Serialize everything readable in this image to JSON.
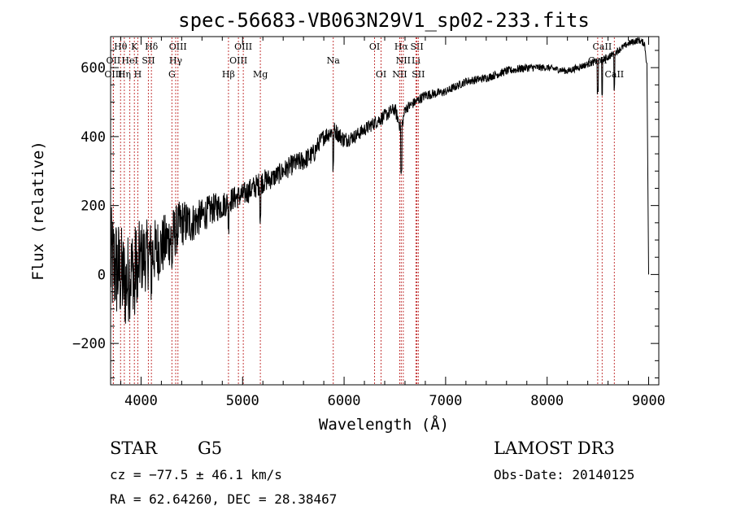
{
  "chart_data": {
    "type": "line",
    "title": "spec-56683-VB063N29V1_sp02-233.fits",
    "xlabel": "Wavelength (Å)",
    "ylabel": "Flux (relative)",
    "xlim": [
      3700,
      9100
    ],
    "ylim": [
      -320,
      690
    ],
    "x_ticks": [
      4000,
      5000,
      6000,
      7000,
      8000,
      9000
    ],
    "y_ticks": [
      -200,
      0,
      200,
      400,
      600
    ],
    "series": [
      {
        "name": "flux",
        "x": [
          3700,
          3750,
          3800,
          3850,
          3900,
          3950,
          4000,
          4100,
          4200,
          4300,
          4400,
          4500,
          4600,
          4700,
          4800,
          4900,
          5000,
          5100,
          5200,
          5300,
          5400,
          5500,
          5600,
          5700,
          5750,
          5800,
          5900,
          6000,
          6100,
          6200,
          6300,
          6400,
          6500,
          6563,
          6600,
          6700,
          6800,
          7000,
          7200,
          7400,
          7600,
          7800,
          8000,
          8200,
          8400,
          8500,
          8600,
          8700,
          8800,
          8900,
          8960,
          8985,
          9000
        ],
        "y": [
          30,
          20,
          0,
          -30,
          10,
          30,
          50,
          60,
          80,
          110,
          150,
          150,
          170,
          190,
          200,
          220,
          230,
          250,
          270,
          280,
          300,
          320,
          330,
          350,
          380,
          400,
          420,
          390,
          400,
          420,
          440,
          460,
          480,
          420,
          480,
          500,
          520,
          530,
          560,
          570,
          590,
          600,
          600,
          590,
          610,
          620,
          630,
          650,
          670,
          680,
          670,
          600,
          0
        ],
        "noise": [
          170,
          160,
          150,
          140,
          130,
          120,
          110,
          100,
          90,
          80,
          70,
          60,
          50,
          45,
          40,
          35,
          35,
          35,
          35,
          30,
          30,
          30,
          30,
          30,
          25,
          25,
          25,
          25,
          20,
          20,
          20,
          20,
          20,
          20,
          15,
          15,
          15,
          12,
          12,
          12,
          12,
          12,
          10,
          10,
          10,
          10,
          10,
          10,
          10,
          10,
          10,
          10,
          0
        ]
      }
    ],
    "spectral_lines": [
      {
        "label": "Hθ",
        "wavelength": 3798,
        "row": 0
      },
      {
        "label": "K",
        "wavelength": 3934,
        "row": 0
      },
      {
        "label": "Hδ",
        "wavelength": 4102,
        "row": 0
      },
      {
        "label": "OIII",
        "wavelength": 4363,
        "row": 0
      },
      {
        "label": "OIII",
        "wavelength": 5007,
        "row": 0
      },
      {
        "label": "OI",
        "wavelength": 6300,
        "row": 0
      },
      {
        "label": "Hα",
        "wavelength": 6563,
        "row": 0
      },
      {
        "label": "SII",
        "wavelength": 6717,
        "row": 0
      },
      {
        "label": "CaII",
        "wavelength": 8542,
        "row": 0
      },
      {
        "label": "OII",
        "wavelength": 3727,
        "row": 1
      },
      {
        "label": "HeI",
        "wavelength": 3889,
        "row": 1
      },
      {
        "label": "SII",
        "wavelength": 4072,
        "row": 1
      },
      {
        "label": "Hγ",
        "wavelength": 4341,
        "row": 1
      },
      {
        "label": "OIII",
        "wavelength": 4959,
        "row": 1
      },
      {
        "label": "Na",
        "wavelength": 5893,
        "row": 1
      },
      {
        "label": "NII",
        "wavelength": 6583,
        "row": 1
      },
      {
        "label": "Li",
        "wavelength": 6708,
        "row": 1
      },
      {
        "label": "CaII",
        "wavelength": 8498,
        "row": 1
      },
      {
        "label": "OIII",
        "wavelength": 3727,
        "row": 2
      },
      {
        "label": "Hη",
        "wavelength": 3835,
        "row": 2
      },
      {
        "label": "H",
        "wavelength": 3968,
        "row": 2
      },
      {
        "label": "G",
        "wavelength": 4304,
        "row": 2
      },
      {
        "label": "Hβ",
        "wavelength": 4861,
        "row": 2
      },
      {
        "label": "Mg",
        "wavelength": 5175,
        "row": 2
      },
      {
        "label": "OI",
        "wavelength": 6364,
        "row": 2
      },
      {
        "label": "NII",
        "wavelength": 6548,
        "row": 2
      },
      {
        "label": "SII",
        "wavelength": 6731,
        "row": 2
      },
      {
        "label": "CaII",
        "wavelength": 8662,
        "row": 2
      }
    ]
  },
  "info": {
    "class": "STAR",
    "subclass": "G5",
    "survey": "LAMOST DR3",
    "cz": "cz = −77.5 ± 46.1 km/s",
    "obs_date": "Obs-Date: 20140125",
    "coords": "RA =  62.64260, DEC =  28.38467"
  }
}
